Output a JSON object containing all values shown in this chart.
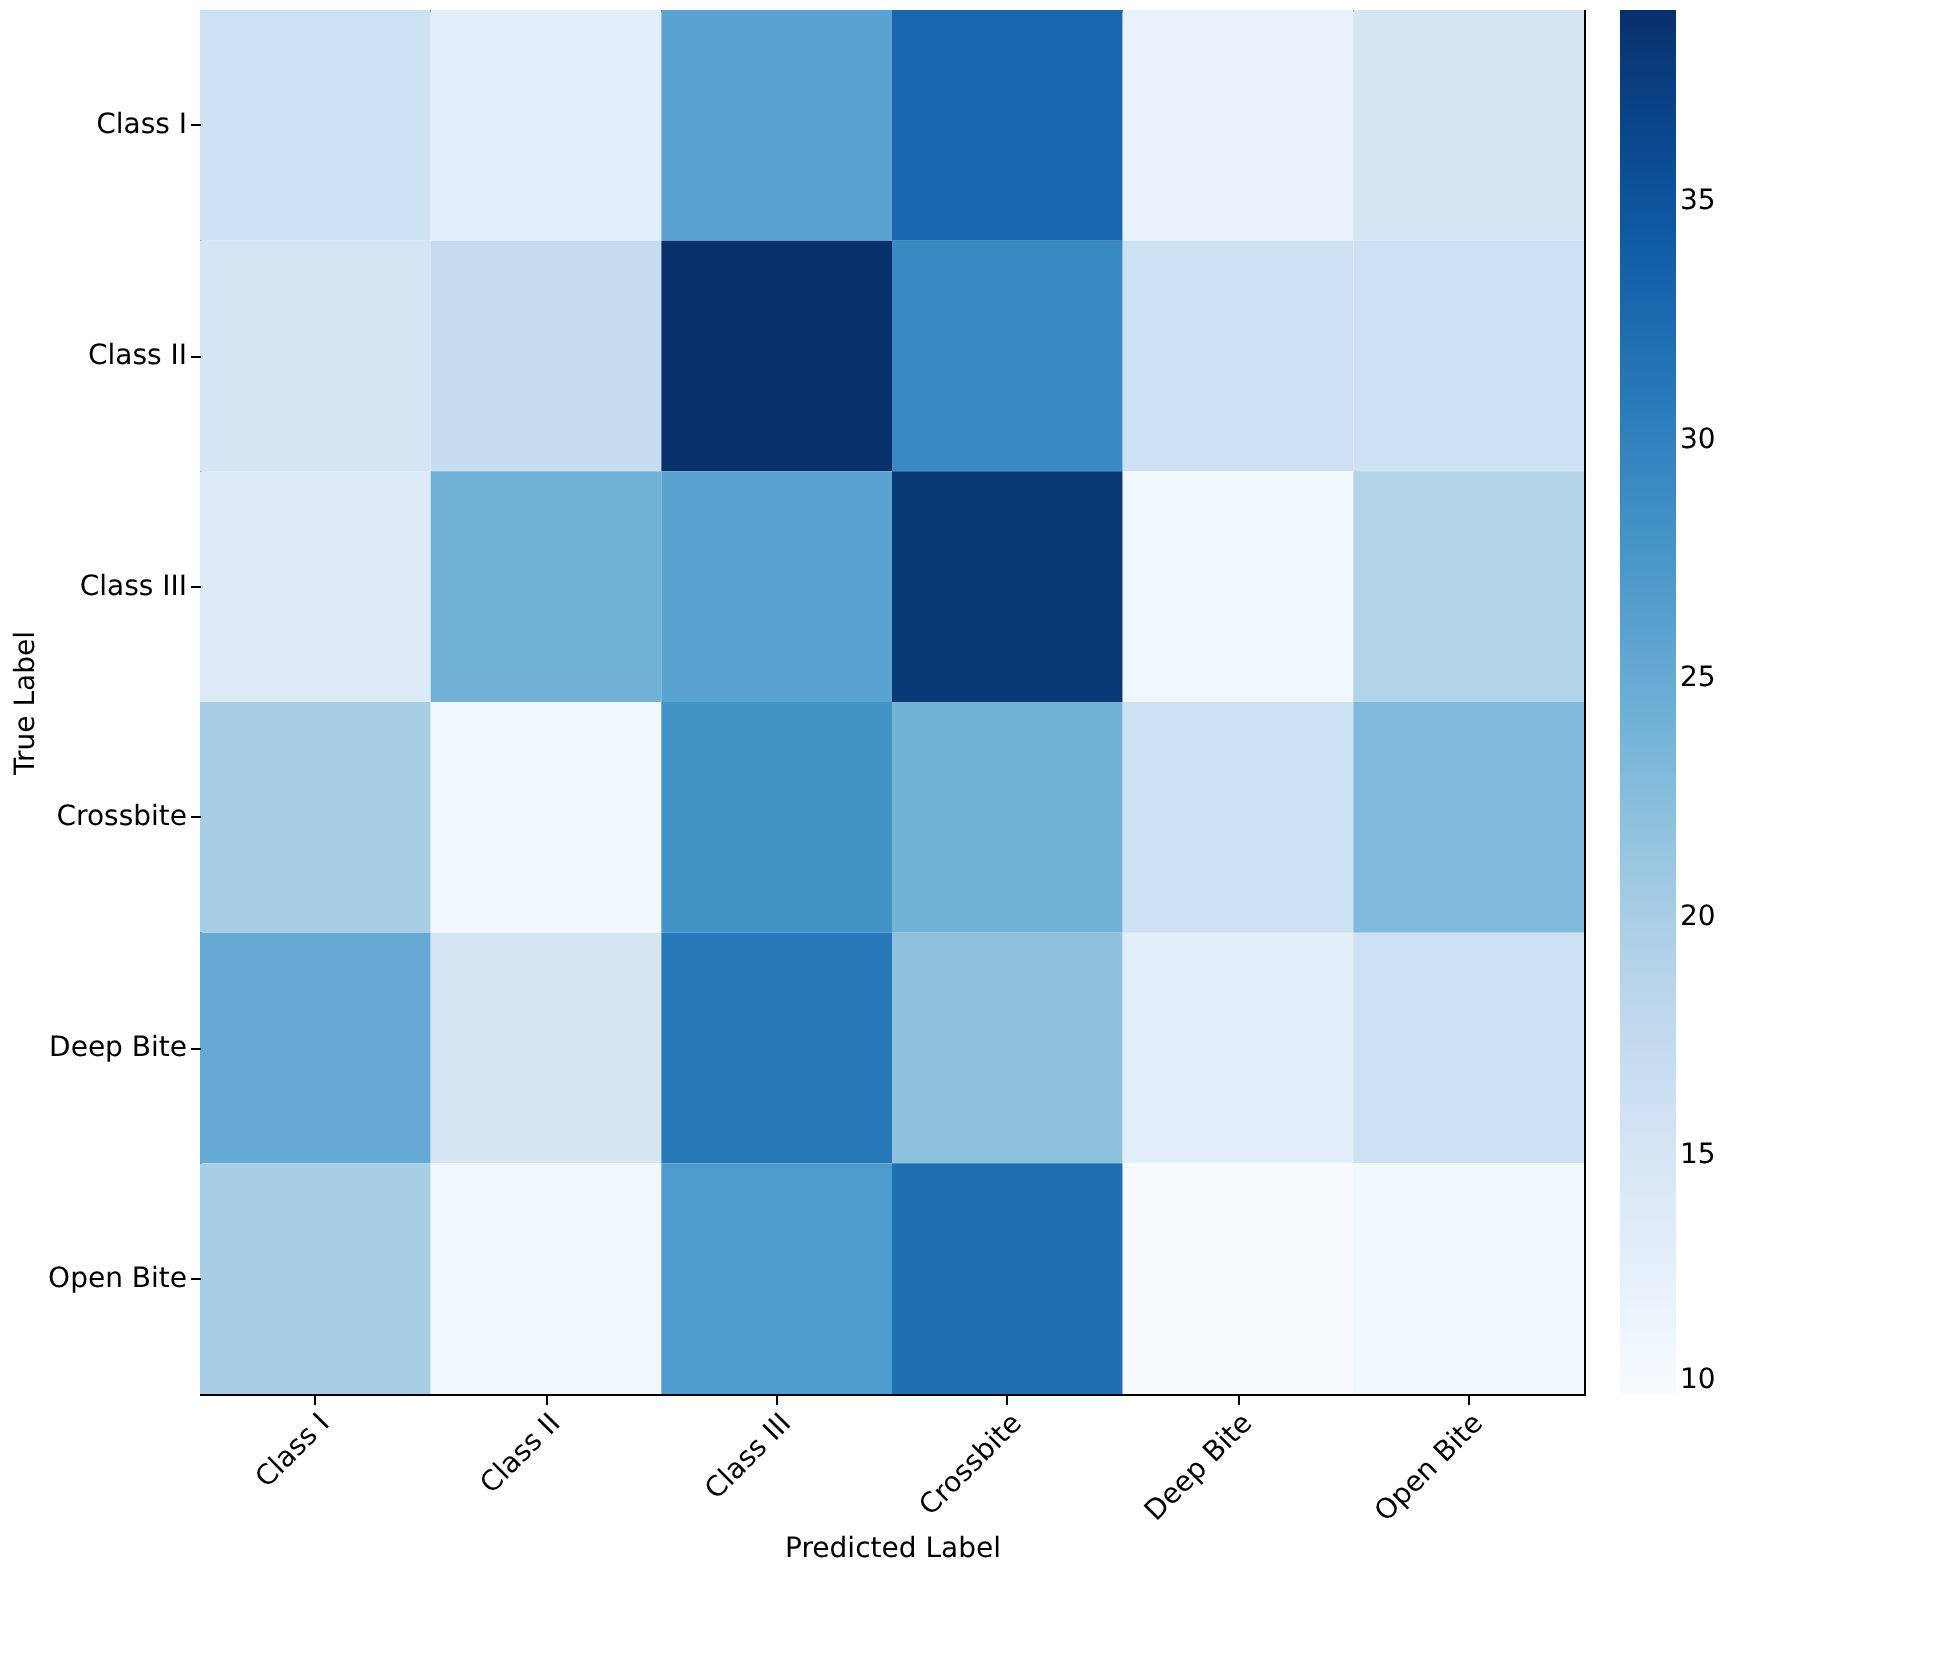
{
  "chart_data": {
    "type": "heatmap",
    "xlabel": "Predicted Label",
    "ylabel": "True Label",
    "categories": [
      "Class I",
      "Class II",
      "Class III",
      "Crossbite",
      "Deep Bite",
      "Open Bite"
    ],
    "y_categories": [
      "Class I",
      "Class II",
      "Class III",
      "Crossbite",
      "Deep Bite",
      "Open Bite"
    ],
    "cells": [
      [
        16,
        13,
        26,
        33,
        12,
        15
      ],
      [
        15,
        17,
        39,
        29,
        16,
        16
      ],
      [
        14,
        24,
        26,
        38,
        11,
        19
      ],
      [
        20,
        11,
        28,
        24,
        16,
        23
      ],
      [
        25,
        15,
        31,
        22,
        13,
        16
      ],
      [
        20,
        11,
        27,
        32,
        10,
        11
      ]
    ],
    "clim": [
      10,
      39
    ],
    "cticks": [
      10,
      15,
      20,
      25,
      30,
      35
    ],
    "grid": false
  }
}
